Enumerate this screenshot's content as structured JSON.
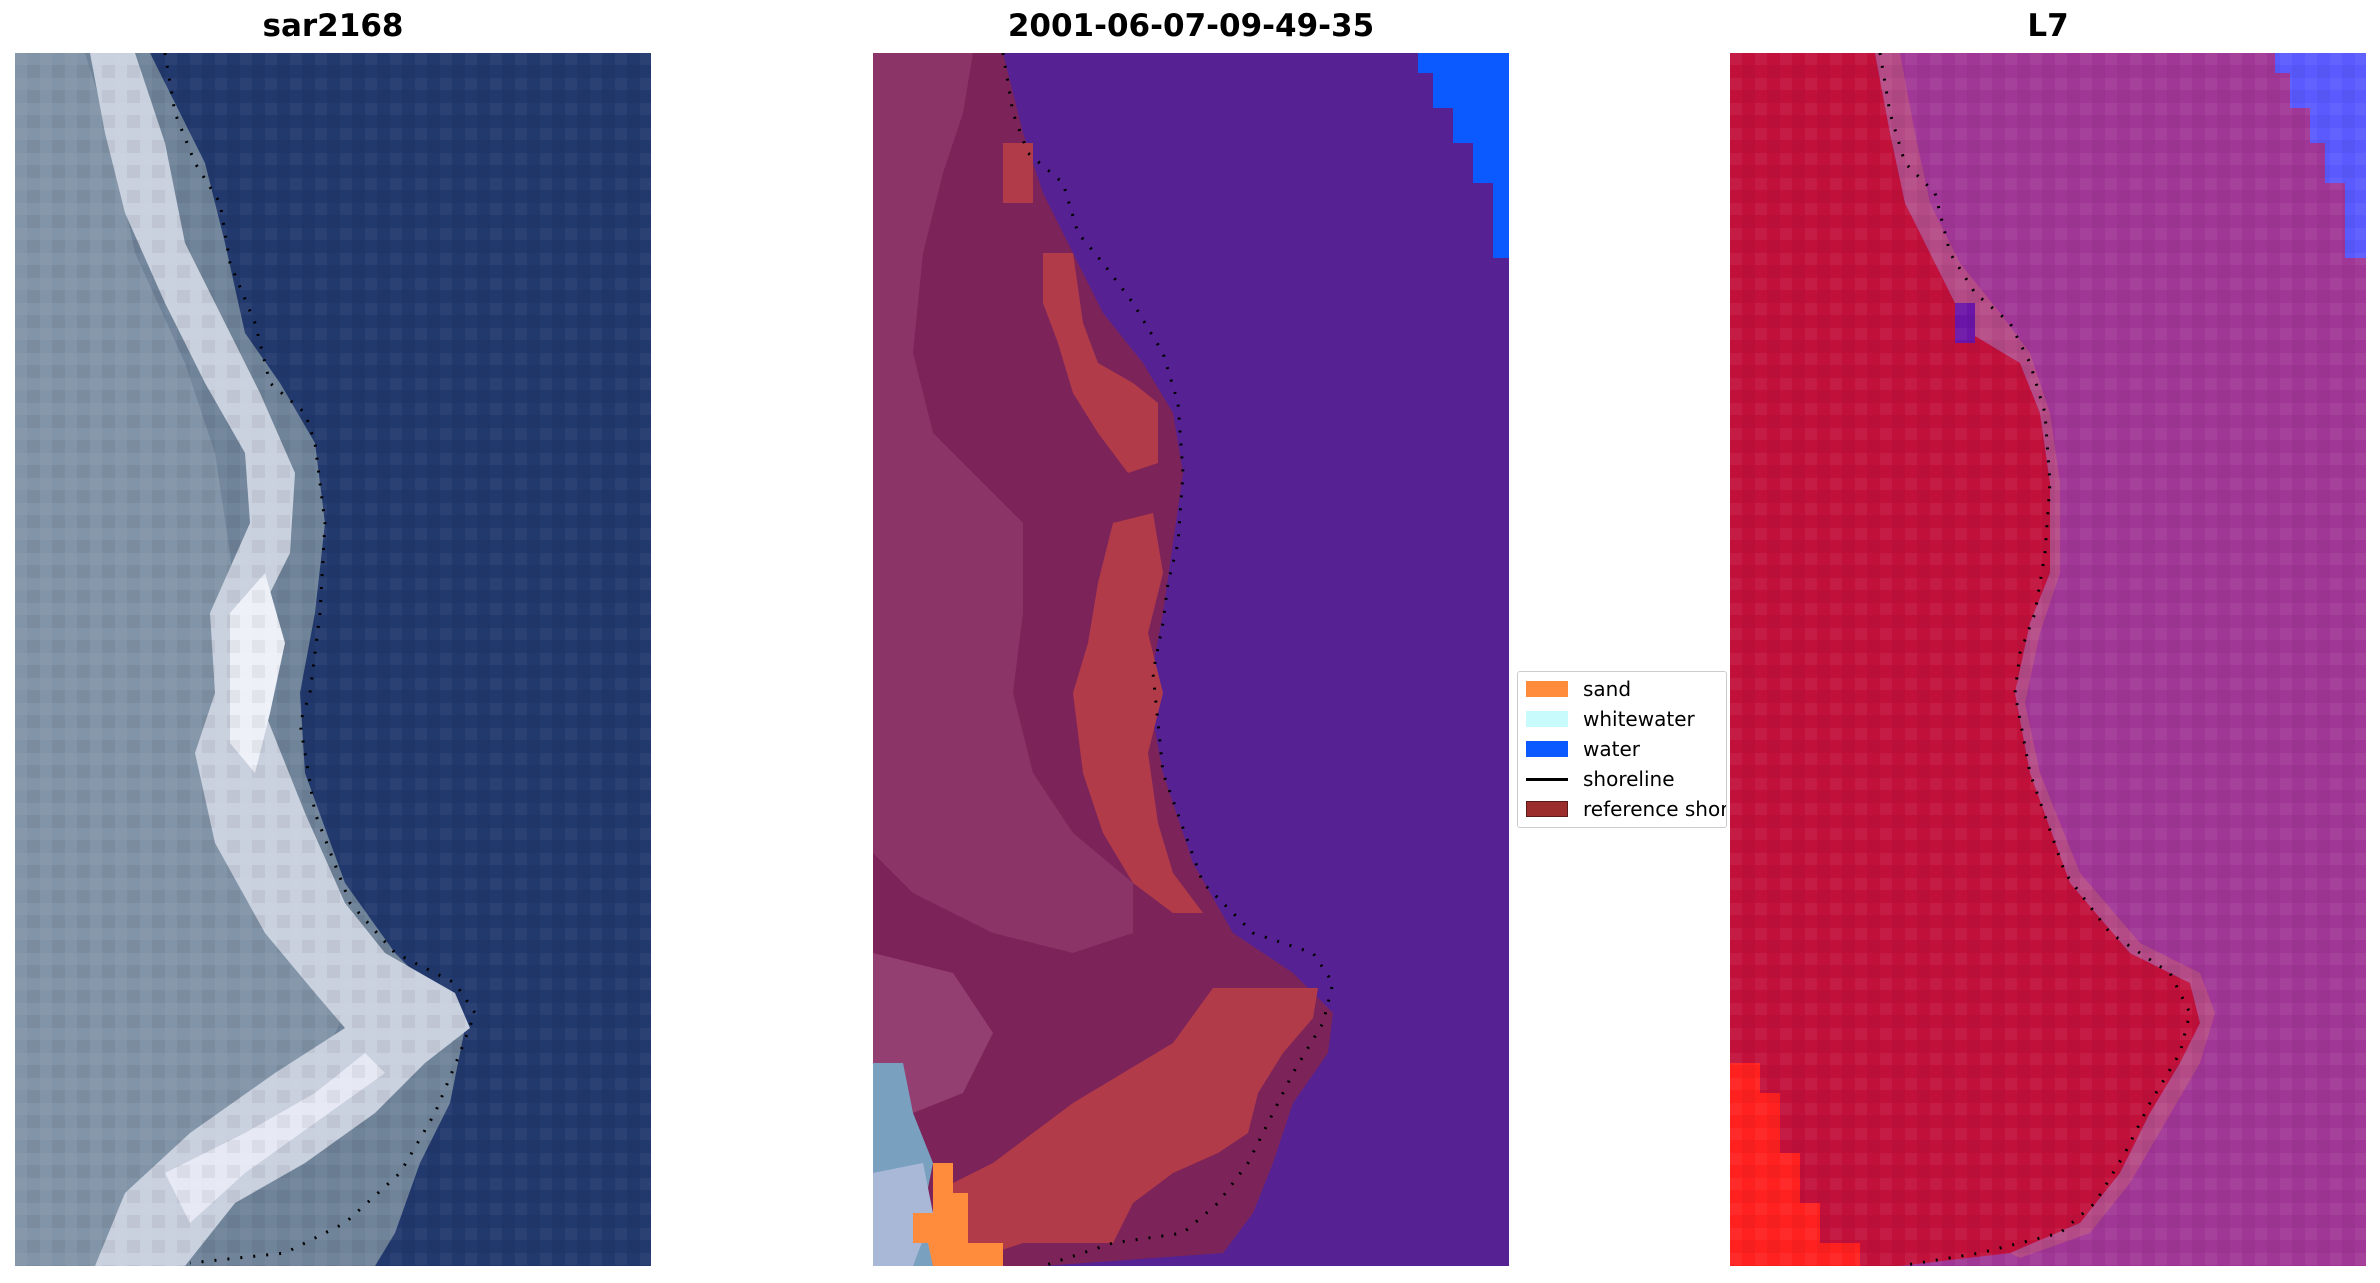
{
  "panels": [
    {
      "title": "sar2168",
      "image": "satellite RGB image of beach with dotted shoreline"
    },
    {
      "title": "2001-06-07-09-49-35",
      "image": "classified image with dotted shoreline"
    },
    {
      "title": "L7",
      "image": "false-color image with dotted shoreline"
    }
  ],
  "legend": {
    "items": [
      {
        "label": "sand",
        "color": "#ff8c3c",
        "kind": "patch"
      },
      {
        "label": "whitewater",
        "color": "#c8fcfc",
        "kind": "patch"
      },
      {
        "label": "water",
        "color": "#0a5aff",
        "kind": "patch"
      },
      {
        "label": "shoreline",
        "color": "#000000",
        "kind": "line"
      },
      {
        "label": "reference shoreline",
        "color": "#9b2d2d",
        "kind": "patch"
      }
    ]
  },
  "colors": {
    "sea_rgb": "#22396e",
    "sea_class": "#552193",
    "land_class": "#7c2459",
    "sand_class": "#b23b4a",
    "water_class": "#0a5aff",
    "l7_land": "#c1103a",
    "l7_sea": "#a03696",
    "l7_water": "#5a5aff",
    "l7_red": "#ff2020"
  }
}
